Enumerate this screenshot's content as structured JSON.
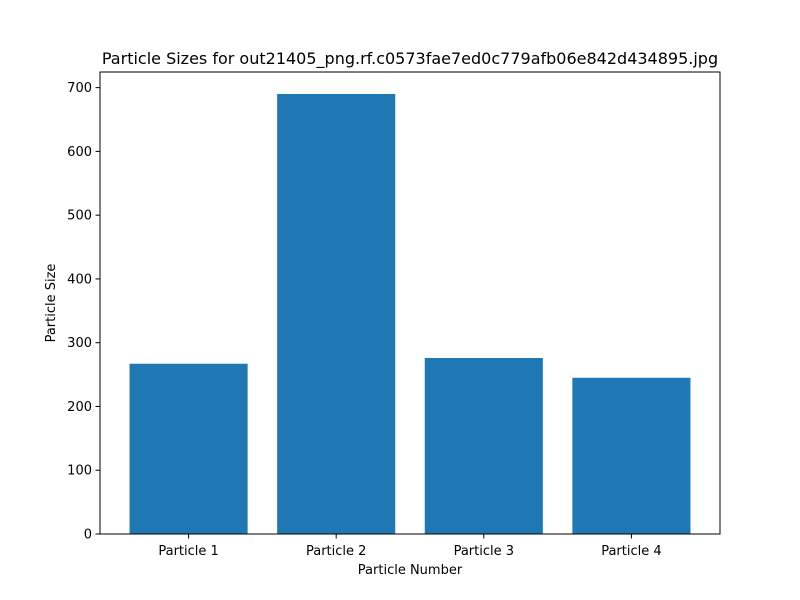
{
  "chart_data": {
    "type": "bar",
    "title": "Particle Sizes for out21405_png.rf.c0573fae7ed0c779afb06e842d434895.jpg",
    "xlabel": "Particle Number",
    "ylabel": "Particle Size",
    "categories": [
      "Particle 1",
      "Particle 2",
      "Particle 3",
      "Particle 4"
    ],
    "values": [
      267,
      690,
      276,
      245
    ],
    "ylim": [
      0,
      724.5
    ],
    "yticks": [
      0,
      100,
      200,
      300,
      400,
      500,
      600,
      700
    ],
    "grid": false,
    "bar_color": "#1f77b4"
  }
}
